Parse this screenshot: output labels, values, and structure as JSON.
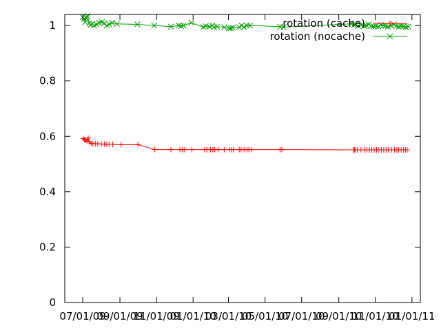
{
  "chart_data": {
    "type": "line",
    "title": "",
    "xlabel": "",
    "ylabel": "",
    "x_ticks": [
      "07/01/09",
      "09/01/09",
      "11/01/09",
      "01/01/10",
      "03/01/10",
      "05/01/10",
      "07/01/10",
      "09/01/10",
      "11/01/10",
      "01/01/11"
    ],
    "y_ticks": [
      "0",
      "0.2",
      "0.4",
      "0.6",
      "0.8",
      "1"
    ],
    "xlim": [
      "2009-06-01",
      "2011-01-15"
    ],
    "ylim": [
      0,
      1.04
    ],
    "grid": false,
    "legend_position": "top-right",
    "series": [
      {
        "name": "rotation (cache)",
        "color": "#ff0000",
        "marker": "plus",
        "points": [
          [
            "2009-07-02",
            0.592
          ],
          [
            "2009-07-04",
            0.588
          ],
          [
            "2009-07-06",
            0.586
          ],
          [
            "2009-07-08",
            0.582
          ],
          [
            "2009-07-10",
            0.594
          ],
          [
            "2009-07-12",
            0.58
          ],
          [
            "2009-07-15",
            0.574
          ],
          [
            "2009-07-18",
            0.574
          ],
          [
            "2009-07-22",
            0.573
          ],
          [
            "2009-07-26",
            0.573
          ],
          [
            "2009-08-01",
            0.572
          ],
          [
            "2009-08-06",
            0.572
          ],
          [
            "2009-08-10",
            0.571
          ],
          [
            "2009-08-14",
            0.571
          ],
          [
            "2009-08-20",
            0.571
          ],
          [
            "2009-09-03",
            0.57
          ],
          [
            "2009-10-01",
            0.57
          ],
          [
            "2009-10-29",
            0.552
          ],
          [
            "2009-11-25",
            0.552
          ],
          [
            "2009-12-10",
            0.552
          ],
          [
            "2009-12-14",
            0.552
          ],
          [
            "2009-12-18",
            0.552
          ],
          [
            "2009-12-30",
            0.552
          ],
          [
            "2010-01-20",
            0.552
          ],
          [
            "2010-01-24",
            0.552
          ],
          [
            "2010-01-30",
            0.552
          ],
          [
            "2010-02-03",
            0.552
          ],
          [
            "2010-02-06",
            0.552
          ],
          [
            "2010-02-12",
            0.552
          ],
          [
            "2010-02-22",
            0.552
          ],
          [
            "2010-03-03",
            0.552
          ],
          [
            "2010-03-06",
            0.552
          ],
          [
            "2010-03-09",
            0.552
          ],
          [
            "2010-03-19",
            0.552
          ],
          [
            "2010-03-22",
            0.552
          ],
          [
            "2010-03-27",
            0.552
          ],
          [
            "2010-04-01",
            0.552
          ],
          [
            "2010-04-04",
            0.552
          ],
          [
            "2010-04-09",
            0.552
          ],
          [
            "2010-05-26",
            0.552
          ],
          [
            "2010-05-29",
            0.552
          ],
          [
            "2010-09-25",
            0.551
          ],
          [
            "2010-09-27",
            0.551
          ],
          [
            "2010-09-29",
            0.551
          ],
          [
            "2010-10-02",
            0.551
          ],
          [
            "2010-10-08",
            0.551
          ],
          [
            "2010-10-14",
            0.551
          ],
          [
            "2010-10-18",
            0.551
          ],
          [
            "2010-10-22",
            0.551
          ],
          [
            "2010-10-26",
            0.551
          ],
          [
            "2010-10-30",
            0.551
          ],
          [
            "2010-11-03",
            0.551
          ],
          [
            "2010-11-07",
            0.551
          ],
          [
            "2010-11-11",
            0.551
          ],
          [
            "2010-11-15",
            0.551
          ],
          [
            "2010-11-19",
            0.551
          ],
          [
            "2010-11-23",
            0.551
          ],
          [
            "2010-11-28",
            0.551
          ],
          [
            "2010-12-03",
            0.551
          ],
          [
            "2010-12-07",
            0.551
          ],
          [
            "2010-12-10",
            0.551
          ],
          [
            "2010-12-14",
            0.551
          ],
          [
            "2010-12-18",
            0.551
          ],
          [
            "2010-12-21",
            0.551
          ],
          [
            "2010-12-24",
            0.551
          ]
        ]
      },
      {
        "name": "rotation (nocache)",
        "color": "#00a000",
        "marker": "cross",
        "points": [
          [
            "2009-07-01",
            1.03
          ],
          [
            "2009-07-03",
            1.025
          ],
          [
            "2009-07-05",
            1.012
          ],
          [
            "2009-07-07",
            1.028
          ],
          [
            "2009-07-09",
            1.034
          ],
          [
            "2009-07-12",
            1.008
          ],
          [
            "2009-07-14",
            1.002
          ],
          [
            "2009-07-17",
            1.006
          ],
          [
            "2009-07-20",
            1.0
          ],
          [
            "2009-07-24",
            1.004
          ],
          [
            "2009-07-28",
            1.01
          ],
          [
            "2009-08-02",
            1.012
          ],
          [
            "2009-08-06",
            1.008
          ],
          [
            "2009-08-10",
            1.0
          ],
          [
            "2009-08-14",
            1.004
          ],
          [
            "2009-08-19",
            1.01
          ],
          [
            "2009-08-27",
            1.006
          ],
          [
            "2009-09-30",
            1.004
          ],
          [
            "2009-10-28",
            1.0
          ],
          [
            "2009-11-25",
            0.996
          ],
          [
            "2009-12-08",
            1.0
          ],
          [
            "2009-12-12",
            0.998
          ],
          [
            "2009-12-16",
            1.0
          ],
          [
            "2009-12-29",
            1.01
          ],
          [
            "2010-01-18",
            0.994
          ],
          [
            "2010-01-22",
            0.998
          ],
          [
            "2010-01-28",
            0.996
          ],
          [
            "2010-02-02",
            1.0
          ],
          [
            "2010-02-05",
            0.994
          ],
          [
            "2010-02-10",
            0.996
          ],
          [
            "2010-02-22",
            0.994
          ],
          [
            "2010-03-02",
            0.99
          ],
          [
            "2010-03-05",
            0.99
          ],
          [
            "2010-03-08",
            0.992
          ],
          [
            "2010-03-19",
            0.994
          ],
          [
            "2010-03-23",
            1.0
          ],
          [
            "2010-03-27",
            0.994
          ],
          [
            "2010-04-01",
            1.0
          ],
          [
            "2010-04-06",
            1.0
          ],
          [
            "2010-05-26",
            0.996
          ],
          [
            "2010-06-01",
            0.994
          ],
          [
            "2010-09-22",
            1.006
          ],
          [
            "2010-09-26",
            1.002
          ],
          [
            "2010-09-29",
            1.004
          ],
          [
            "2010-10-03",
            0.998
          ],
          [
            "2010-10-08",
            1.002
          ],
          [
            "2010-10-13",
            0.998
          ],
          [
            "2010-10-17",
            1.0
          ],
          [
            "2010-10-21",
            1.004
          ],
          [
            "2010-10-25",
            0.998
          ],
          [
            "2010-10-29",
            0.996
          ],
          [
            "2010-11-02",
            0.998
          ],
          [
            "2010-11-06",
            0.996
          ],
          [
            "2010-11-10",
            1.002
          ],
          [
            "2010-11-14",
            1.0
          ],
          [
            "2010-11-18",
            0.998
          ],
          [
            "2010-11-22",
            0.996
          ],
          [
            "2010-11-27",
            1.0
          ],
          [
            "2010-12-02",
            1.004
          ],
          [
            "2010-12-06",
            0.998
          ],
          [
            "2010-12-10",
            0.996
          ],
          [
            "2010-12-14",
            0.998
          ],
          [
            "2010-12-18",
            0.996
          ],
          [
            "2010-12-22",
            0.994
          ],
          [
            "2010-12-26",
            0.996
          ]
        ]
      }
    ]
  }
}
